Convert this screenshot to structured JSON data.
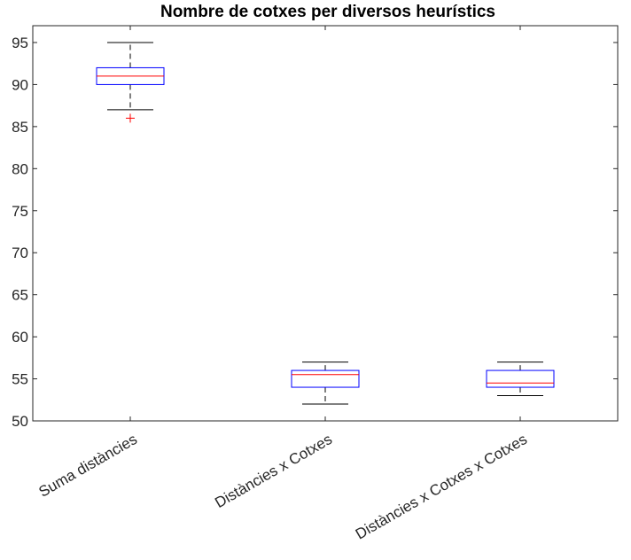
{
  "chart_data": {
    "type": "boxplot",
    "title": "Nombre de cotxes per diversos heurístics",
    "xlabel": "",
    "ylabel": "",
    "ylim": [
      50,
      97
    ],
    "yticks": [
      50,
      55,
      60,
      65,
      70,
      75,
      80,
      85,
      90,
      95
    ],
    "grid": false,
    "colors": {
      "box": "#0000ff",
      "median": "#ff0000",
      "whisker": "#000000",
      "outlier": "#ff0000",
      "axis": "#262626"
    },
    "categories": [
      "Suma distàncies",
      "Distàncies x Cotxes",
      "Distàncies x Cotxes x Cotxes"
    ],
    "boxes": [
      {
        "category": "Suma distàncies",
        "whisker_low": 87,
        "q1": 90,
        "median": 91,
        "q3": 92,
        "whisker_high": 95,
        "outliers": [
          86
        ]
      },
      {
        "category": "Distàncies x Cotxes",
        "whisker_low": 52,
        "q1": 54,
        "median": 55.5,
        "q3": 56,
        "whisker_high": 57,
        "outliers": []
      },
      {
        "category": "Distàncies x Cotxes x Cotxes",
        "whisker_low": 53,
        "q1": 54,
        "median": 54.5,
        "q3": 56,
        "whisker_high": 57,
        "outliers": []
      }
    ]
  }
}
